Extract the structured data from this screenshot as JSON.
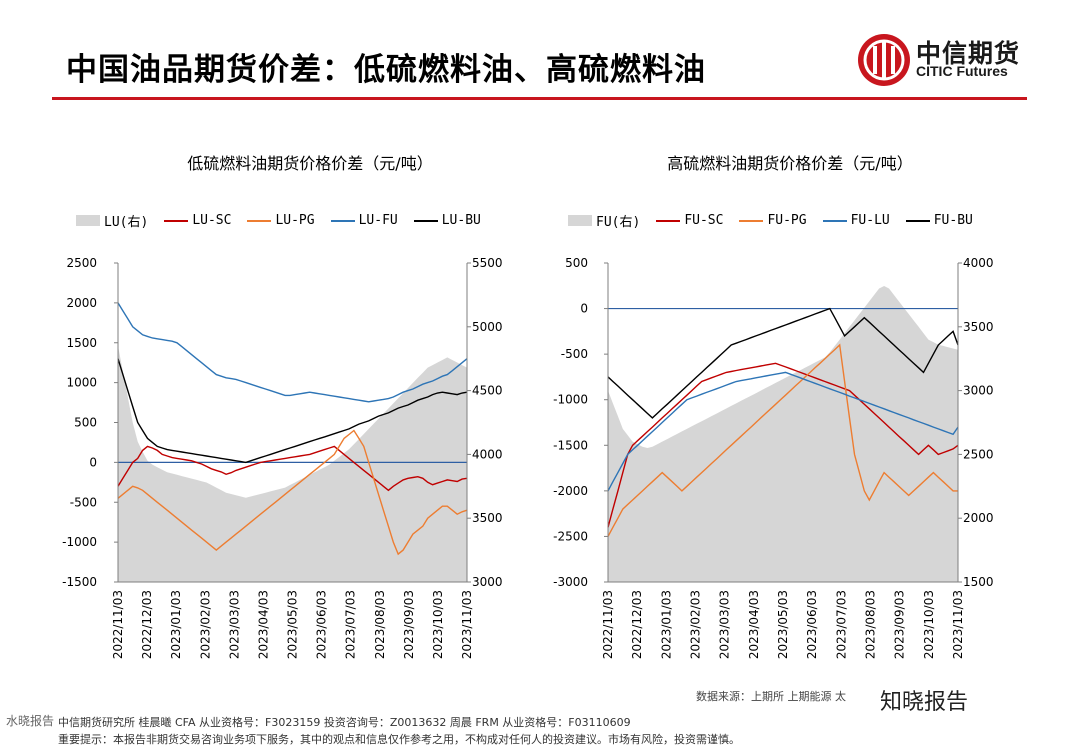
{
  "page": {
    "title": "中国油品期货价差：低硫燃料油、高硫燃料油",
    "logo_cn": "中信期货",
    "logo_en": "CITIC Futures",
    "source": "数据来源：上期所 上期能源 太",
    "watermark": "知晓报告",
    "watermark_small": "水晓报告",
    "footer_line1": "中信期货研究所  桂晨曦 CFA 从业资格号：F3023159 投资咨询号：Z0013632    周晨 FRM  从业资格号：F03110609",
    "footer_line2": "重要提示：本报告非期货交易咨询业务项下服务，其中的观点和信息仅作参考之用，不构成对任何人的投资建议。市场有风险，投资需谨慎。",
    "colors": {
      "accent": "#c8161e",
      "area": "#d6d6d6",
      "red": "#c00000",
      "orange": "#ed7d31",
      "blue": "#2e75b6",
      "black": "#000000"
    }
  },
  "chart_data": [
    {
      "type": "line",
      "title": "低硫燃料油期货价格价差（元/吨）",
      "x_ticks": [
        "2022/11/03",
        "2022/12/03",
        "2023/01/03",
        "2023/02/03",
        "2023/03/03",
        "2023/04/03",
        "2023/05/03",
        "2023/06/03",
        "2023/07/03",
        "2023/08/03",
        "2023/09/03",
        "2023/10/03",
        "2023/11/03"
      ],
      "ylim_left": [
        -1500,
        2500
      ],
      "ylim_right": [
        3000,
        5500
      ],
      "yticks_left": [
        2500,
        2000,
        1500,
        1000,
        500,
        0,
        -500,
        -1000,
        -1500
      ],
      "yticks_right": [
        5500,
        5000,
        4500,
        4000,
        3500,
        3000
      ],
      "series": [
        {
          "name": "LU(右)",
          "kind": "area",
          "axis": "right",
          "color": "#d6d6d6",
          "values": [
            4850,
            4650,
            4450,
            4250,
            4100,
            4020,
            3950,
            3920,
            3900,
            3880,
            3860,
            3850,
            3840,
            3830,
            3820,
            3810,
            3800,
            3790,
            3780,
            3760,
            3740,
            3720,
            3700,
            3690,
            3680,
            3670,
            3660,
            3670,
            3680,
            3690,
            3700,
            3710,
            3720,
            3730,
            3740,
            3760,
            3780,
            3800,
            3820,
            3840,
            3860,
            3880,
            3900,
            3920,
            3950,
            3980,
            4010,
            4040,
            4080,
            4120,
            4160,
            4200,
            4240,
            4280,
            4320,
            4360,
            4400,
            4440,
            4480,
            4520,
            4560,
            4600,
            4640,
            4680,
            4700,
            4720,
            4740,
            4760,
            4740,
            4720,
            4700,
            4680
          ]
        },
        {
          "name": "LU-SC",
          "kind": "line",
          "axis": "left",
          "color": "#c00000",
          "values": [
            -300,
            -200,
            -100,
            0,
            50,
            150,
            200,
            180,
            150,
            100,
            80,
            60,
            50,
            40,
            30,
            20,
            0,
            -20,
            -50,
            -80,
            -100,
            -120,
            -150,
            -130,
            -100,
            -80,
            -60,
            -40,
            -20,
            0,
            10,
            20,
            30,
            40,
            50,
            60,
            70,
            80,
            90,
            100,
            120,
            140,
            160,
            180,
            200,
            150,
            100,
            50,
            0,
            -50,
            -100,
            -150,
            -200,
            -250,
            -300,
            -350,
            -300,
            -260,
            -220,
            -200,
            -190,
            -180,
            -200,
            -250,
            -280,
            -260,
            -240,
            -220,
            -230,
            -240,
            -210,
            -200
          ]
        },
        {
          "name": "LU-PG",
          "kind": "line",
          "axis": "left",
          "color": "#ed7d31",
          "values": [
            -450,
            -400,
            -350,
            -300,
            -320,
            -350,
            -400,
            -450,
            -500,
            -550,
            -600,
            -650,
            -700,
            -750,
            -800,
            -850,
            -900,
            -950,
            -1000,
            -1050,
            -1100,
            -1050,
            -1000,
            -950,
            -900,
            -850,
            -800,
            -750,
            -700,
            -650,
            -600,
            -550,
            -500,
            -450,
            -400,
            -350,
            -300,
            -250,
            -200,
            -150,
            -100,
            -50,
            0,
            50,
            100,
            200,
            300,
            350,
            400,
            300,
            200,
            0,
            -200,
            -400,
            -600,
            -800,
            -1000,
            -1150,
            -1100,
            -1000,
            -900,
            -850,
            -800,
            -700,
            -650,
            -600,
            -550,
            -550,
            -600,
            -650,
            -620,
            -600
          ]
        },
        {
          "name": "LU-FU",
          "kind": "line",
          "axis": "left",
          "color": "#2e75b6",
          "values": [
            2000,
            1900,
            1800,
            1700,
            1650,
            1600,
            1580,
            1560,
            1550,
            1540,
            1530,
            1520,
            1500,
            1450,
            1400,
            1350,
            1300,
            1250,
            1200,
            1150,
            1100,
            1080,
            1060,
            1050,
            1040,
            1020,
            1000,
            980,
            960,
            940,
            920,
            900,
            880,
            860,
            840,
            840,
            850,
            860,
            870,
            880,
            870,
            860,
            850,
            840,
            830,
            820,
            810,
            800,
            790,
            780,
            770,
            760,
            770,
            780,
            790,
            800,
            820,
            850,
            880,
            900,
            920,
            950,
            980,
            1000,
            1020,
            1050,
            1080,
            1100,
            1150,
            1200,
            1250,
            1300
          ]
        },
        {
          "name": "LU-BU",
          "kind": "line",
          "axis": "left",
          "color": "#000000",
          "values": [
            1300,
            1100,
            900,
            700,
            500,
            400,
            300,
            250,
            200,
            180,
            160,
            150,
            140,
            130,
            120,
            110,
            100,
            90,
            80,
            70,
            60,
            50,
            40,
            30,
            20,
            10,
            0,
            20,
            40,
            60,
            80,
            100,
            120,
            140,
            160,
            180,
            200,
            220,
            240,
            260,
            280,
            300,
            320,
            340,
            360,
            380,
            400,
            420,
            450,
            480,
            500,
            520,
            550,
            580,
            600,
            620,
            650,
            680,
            700,
            720,
            750,
            780,
            800,
            820,
            850,
            870,
            880,
            870,
            860,
            850,
            870,
            880
          ]
        }
      ]
    },
    {
      "type": "line",
      "title": "高硫燃料油期货价格价差（元/吨）",
      "x_ticks": [
        "2022/11/03",
        "2022/12/03",
        "2023/01/03",
        "2023/02/03",
        "2023/03/03",
        "2023/04/03",
        "2023/05/03",
        "2023/06/03",
        "2023/07/03",
        "2023/08/03",
        "2023/09/03",
        "2023/10/03",
        "2023/11/03"
      ],
      "ylim_left": [
        -3000,
        500
      ],
      "ylim_right": [
        1500,
        4000
      ],
      "yticks_left": [
        500,
        0,
        -500,
        -1000,
        -1500,
        -2000,
        -2500,
        -3000
      ],
      "yticks_right": [
        4000,
        3500,
        3000,
        2500,
        2000,
        1500
      ],
      "series": [
        {
          "name": "FU(右)",
          "kind": "area",
          "axis": "right",
          "color": "#d6d6d6",
          "values": [
            3000,
            2900,
            2800,
            2700,
            2650,
            2600,
            2580,
            2560,
            2550,
            2560,
            2580,
            2600,
            2620,
            2640,
            2660,
            2680,
            2700,
            2720,
            2740,
            2760,
            2780,
            2800,
            2820,
            2840,
            2860,
            2880,
            2900,
            2920,
            2940,
            2960,
            2980,
            3000,
            3020,
            3040,
            3060,
            3080,
            3100,
            3120,
            3140,
            3160,
            3180,
            3200,
            3220,
            3240,
            3260,
            3300,
            3350,
            3400,
            3450,
            3500,
            3550,
            3600,
            3650,
            3700,
            3750,
            3800,
            3820,
            3800,
            3750,
            3700,
            3650,
            3600,
            3550,
            3500,
            3450,
            3400,
            3380,
            3360,
            3350,
            3340,
            3330,
            3320
          ]
        },
        {
          "name": "FU-SC",
          "kind": "line",
          "axis": "left",
          "color": "#c00000",
          "values": [
            -2400,
            -2200,
            -2000,
            -1800,
            -1600,
            -1500,
            -1450,
            -1400,
            -1350,
            -1300,
            -1250,
            -1200,
            -1150,
            -1100,
            -1050,
            -1000,
            -950,
            -900,
            -850,
            -800,
            -780,
            -760,
            -740,
            -720,
            -700,
            -690,
            -680,
            -670,
            -660,
            -650,
            -640,
            -630,
            -620,
            -610,
            -600,
            -620,
            -640,
            -660,
            -680,
            -700,
            -720,
            -740,
            -760,
            -780,
            -800,
            -820,
            -840,
            -860,
            -880,
            -900,
            -950,
            -1000,
            -1050,
            -1100,
            -1150,
            -1200,
            -1250,
            -1300,
            -1350,
            -1400,
            -1450,
            -1500,
            -1550,
            -1600,
            -1550,
            -1500,
            -1550,
            -1600,
            -1580,
            -1560,
            -1540,
            -1500
          ]
        },
        {
          "name": "FU-PG",
          "kind": "line",
          "axis": "left",
          "color": "#ed7d31",
          "values": [
            -2500,
            -2400,
            -2300,
            -2200,
            -2150,
            -2100,
            -2050,
            -2000,
            -1950,
            -1900,
            -1850,
            -1800,
            -1850,
            -1900,
            -1950,
            -2000,
            -1950,
            -1900,
            -1850,
            -1800,
            -1750,
            -1700,
            -1650,
            -1600,
            -1550,
            -1500,
            -1450,
            -1400,
            -1350,
            -1300,
            -1250,
            -1200,
            -1150,
            -1100,
            -1050,
            -1000,
            -950,
            -900,
            -850,
            -800,
            -750,
            -700,
            -650,
            -600,
            -550,
            -500,
            -450,
            -400,
            -800,
            -1200,
            -1600,
            -1800,
            -2000,
            -2100,
            -2000,
            -1900,
            -1800,
            -1850,
            -1900,
            -1950,
            -2000,
            -2050,
            -2000,
            -1950,
            -1900,
            -1850,
            -1800,
            -1850,
            -1900,
            -1950,
            -2000,
            -2000
          ]
        },
        {
          "name": "FU-LU",
          "kind": "line",
          "axis": "left",
          "color": "#2e75b6",
          "values": [
            -2000,
            -1900,
            -1800,
            -1700,
            -1600,
            -1550,
            -1500,
            -1450,
            -1400,
            -1350,
            -1300,
            -1250,
            -1200,
            -1150,
            -1100,
            -1050,
            -1000,
            -980,
            -960,
            -940,
            -920,
            -900,
            -880,
            -860,
            -840,
            -820,
            -800,
            -790,
            -780,
            -770,
            -760,
            -750,
            -740,
            -730,
            -720,
            -710,
            -700,
            -720,
            -740,
            -760,
            -780,
            -800,
            -820,
            -840,
            -860,
            -880,
            -900,
            -920,
            -940,
            -960,
            -980,
            -1000,
            -1020,
            -1040,
            -1060,
            -1080,
            -1100,
            -1120,
            -1140,
            -1160,
            -1180,
            -1200,
            -1220,
            -1240,
            -1260,
            -1280,
            -1300,
            -1320,
            -1340,
            -1360,
            -1380,
            -1300
          ]
        },
        {
          "name": "FU-BU",
          "kind": "line",
          "axis": "left",
          "color": "#000000",
          "values": [
            -750,
            -800,
            -850,
            -900,
            -950,
            -1000,
            -1050,
            -1100,
            -1150,
            -1200,
            -1150,
            -1100,
            -1050,
            -1000,
            -950,
            -900,
            -850,
            -800,
            -750,
            -700,
            -650,
            -600,
            -550,
            -500,
            -450,
            -400,
            -380,
            -360,
            -340,
            -320,
            -300,
            -280,
            -260,
            -240,
            -220,
            -200,
            -180,
            -160,
            -140,
            -120,
            -100,
            -80,
            -60,
            -40,
            -20,
            0,
            -100,
            -200,
            -300,
            -250,
            -200,
            -150,
            -100,
            -150,
            -200,
            -250,
            -300,
            -350,
            -400,
            -450,
            -500,
            -550,
            -600,
            -650,
            -700,
            -600,
            -500,
            -400,
            -350,
            -300,
            -250,
            -400
          ]
        }
      ]
    }
  ]
}
